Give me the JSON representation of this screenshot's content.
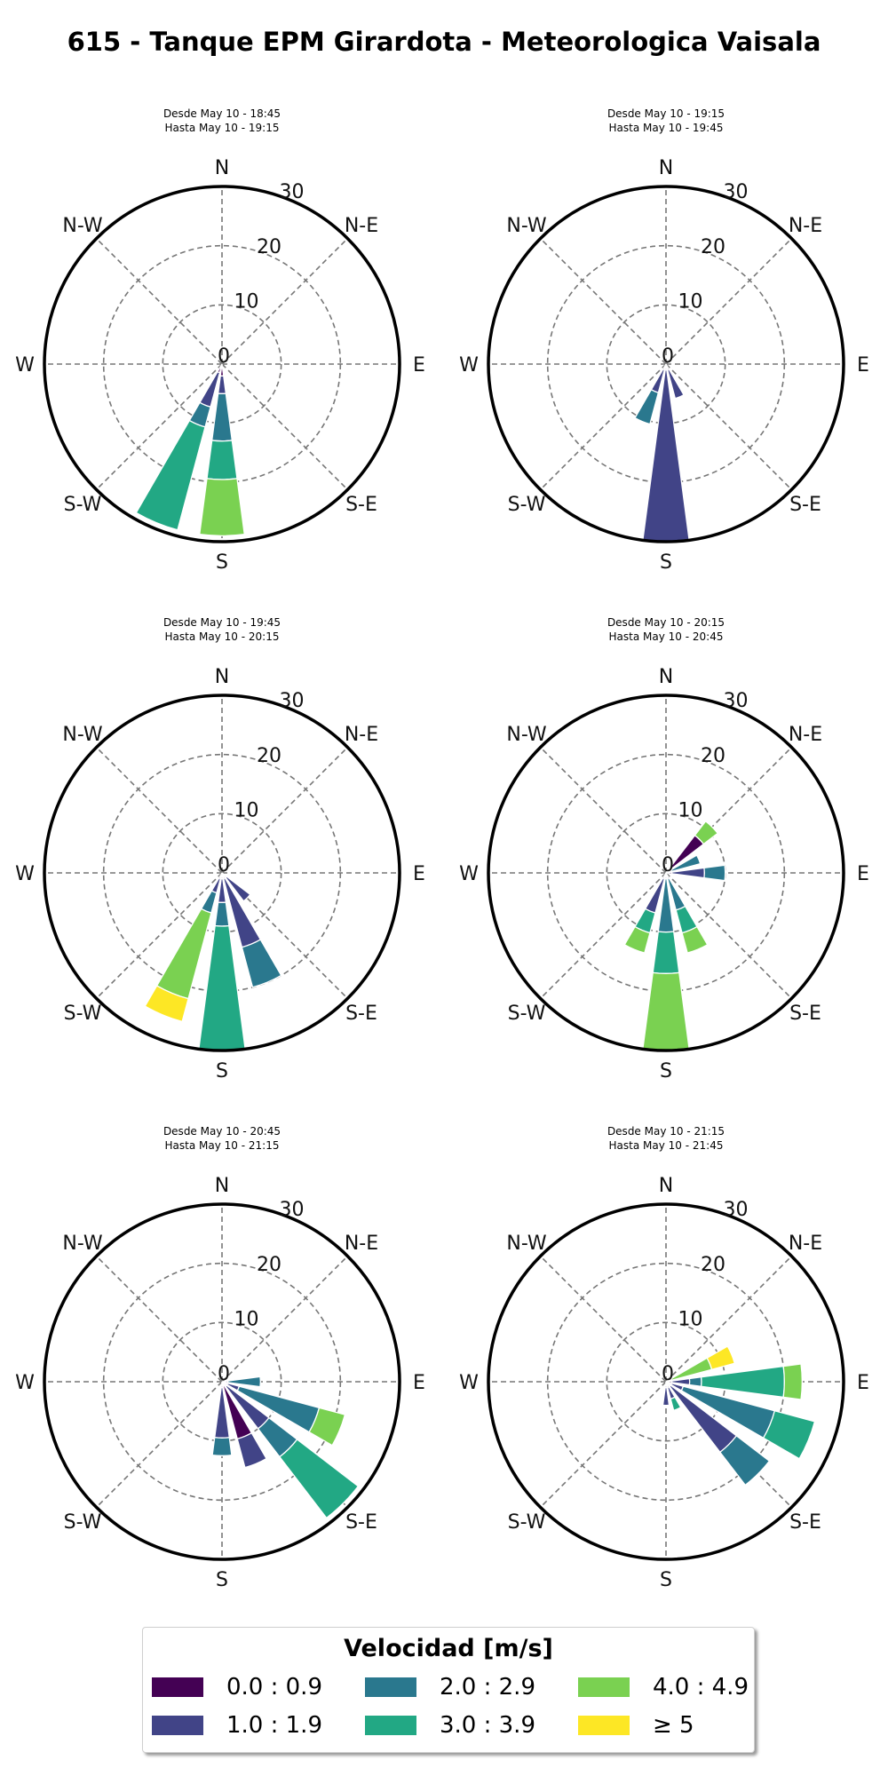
{
  "title": "615 - Tanque EPM Girardota - Meteorologica Vaisala",
  "legend": {
    "title": "Velocidad [m/s]",
    "bins": [
      {
        "label": "0.0 : 0.9",
        "color": "#440154"
      },
      {
        "label": "1.0 : 1.9",
        "color": "#414487"
      },
      {
        "label": "2.0 : 2.9",
        "color": "#2a788e"
      },
      {
        "label": "3.0 : 3.9",
        "color": "#22a884"
      },
      {
        "label": "4.0 : 4.9",
        "color": "#7ad151"
      },
      {
        "label": "≥ 5",
        "color": "#fde725"
      }
    ]
  },
  "chart_data": [
    {
      "type": "windrose",
      "subtitle": [
        "Desde May 10 - 18:45",
        "Hasta May 10 - 19:15"
      ],
      "direction_labels": [
        "N",
        "N-E",
        "E",
        "S-E",
        "S",
        "S-W",
        "W",
        "N-W"
      ],
      "radial_ticks": [
        0,
        10,
        20,
        30
      ],
      "rlim": [
        0,
        30
      ],
      "grid": true,
      "bars": [
        {
          "direction": 180,
          "stack": [
            {
              "bin": 0,
              "to": 2.0
            },
            {
              "bin": 1,
              "to": 5.0
            },
            {
              "bin": 2,
              "to": 13.0
            },
            {
              "bin": 3,
              "to": 19.5
            },
            {
              "bin": 4,
              "to": 29.0
            }
          ]
        },
        {
          "direction": 202.5,
          "stack": [
            {
              "bin": 0,
              "to": 1.5
            },
            {
              "bin": 1,
              "to": 7.5
            },
            {
              "bin": 2,
              "to": 11.0
            },
            {
              "bin": 3,
              "to": 29.0
            }
          ]
        }
      ]
    },
    {
      "type": "windrose",
      "subtitle": [
        "Desde May 10 - 19:15",
        "Hasta May 10 - 19:45"
      ],
      "direction_labels": [
        "N",
        "N-E",
        "E",
        "S-E",
        "S",
        "S-W",
        "W",
        "N-W"
      ],
      "radial_ticks": [
        0,
        10,
        20,
        30
      ],
      "rlim": [
        0,
        30
      ],
      "grid": true,
      "bars": [
        {
          "direction": 157.5,
          "stack": [
            {
              "bin": 0,
              "to": 1.0
            },
            {
              "bin": 1,
              "to": 6.0
            }
          ]
        },
        {
          "direction": 180,
          "stack": [
            {
              "bin": 0,
              "to": 1.0
            },
            {
              "bin": 1,
              "to": 30.0
            }
          ]
        },
        {
          "direction": 202.5,
          "stack": [
            {
              "bin": 0,
              "to": 1.0
            },
            {
              "bin": 1,
              "to": 5.0
            },
            {
              "bin": 2,
              "to": 10.5
            }
          ]
        }
      ]
    },
    {
      "type": "windrose",
      "subtitle": [
        "Desde May 10 - 19:45",
        "Hasta May 10 - 20:15"
      ],
      "direction_labels": [
        "N",
        "N-E",
        "E",
        "S-E",
        "S",
        "S-W",
        "W",
        "N-W"
      ],
      "radial_ticks": [
        0,
        10,
        20,
        30
      ],
      "rlim": [
        0,
        30
      ],
      "grid": true,
      "bars": [
        {
          "direction": 135,
          "stack": [
            {
              "bin": 0,
              "to": 1.0
            },
            {
              "bin": 1,
              "to": 6.0
            }
          ]
        },
        {
          "direction": 157.5,
          "stack": [
            {
              "bin": 0,
              "to": 1.0
            },
            {
              "bin": 1,
              "to": 13.0
            },
            {
              "bin": 2,
              "to": 20.0
            }
          ]
        },
        {
          "direction": 180,
          "stack": [
            {
              "bin": 0,
              "to": 1.0
            },
            {
              "bin": 1,
              "to": 5.0
            },
            {
              "bin": 2,
              "to": 9.0
            },
            {
              "bin": 3,
              "to": 30.0
            }
          ]
        },
        {
          "direction": 202.5,
          "stack": [
            {
              "bin": 0,
              "to": 1.0
            },
            {
              "bin": 1,
              "to": 3.5
            },
            {
              "bin": 2,
              "to": 7.0
            },
            {
              "bin": 4,
              "to": 22.0
            },
            {
              "bin": 5,
              "to": 26.0
            }
          ]
        }
      ]
    },
    {
      "type": "windrose",
      "subtitle": [
        "Desde May 10 - 20:15",
        "Hasta May 10 - 20:45"
      ],
      "direction_labels": [
        "N",
        "N-E",
        "E",
        "S-E",
        "S",
        "S-W",
        "W",
        "N-W"
      ],
      "radial_ticks": [
        0,
        10,
        20,
        30
      ],
      "rlim": [
        0,
        30
      ],
      "grid": true,
      "bars": [
        {
          "direction": 45,
          "stack": [
            {
              "bin": 0,
              "to": 8.0
            },
            {
              "bin": 4,
              "to": 11.0
            }
          ]
        },
        {
          "direction": 67.5,
          "stack": [
            {
              "bin": 0,
              "to": 1.0
            },
            {
              "bin": 2,
              "to": 6.0
            }
          ]
        },
        {
          "direction": 90,
          "stack": [
            {
              "bin": 0,
              "to": 1.0
            },
            {
              "bin": 1,
              "to": 6.5
            },
            {
              "bin": 2,
              "to": 10.0
            }
          ]
        },
        {
          "direction": 157.5,
          "stack": [
            {
              "bin": 0,
              "to": 1.0
            },
            {
              "bin": 2,
              "to": 6.5
            },
            {
              "bin": 3,
              "to": 10.5
            },
            {
              "bin": 4,
              "to": 14.0
            }
          ]
        },
        {
          "direction": 180,
          "stack": [
            {
              "bin": 0,
              "to": 1.0
            },
            {
              "bin": 2,
              "to": 10.0
            },
            {
              "bin": 3,
              "to": 17.0
            },
            {
              "bin": 4,
              "to": 30.0
            }
          ]
        },
        {
          "direction": 202.5,
          "stack": [
            {
              "bin": 0,
              "to": 1.0
            },
            {
              "bin": 1,
              "to": 7.0
            },
            {
              "bin": 3,
              "to": 10.5
            },
            {
              "bin": 4,
              "to": 14.0
            }
          ]
        }
      ]
    },
    {
      "type": "windrose",
      "subtitle": [
        "Desde May 10 - 20:45",
        "Hasta May 10 - 21:15"
      ],
      "direction_labels": [
        "N",
        "N-E",
        "E",
        "S-E",
        "S",
        "S-W",
        "W",
        "N-W"
      ],
      "radial_ticks": [
        0,
        10,
        20,
        30
      ],
      "rlim": [
        0,
        30
      ],
      "grid": true,
      "bars": [
        {
          "direction": 90,
          "stack": [
            {
              "bin": 0,
              "to": 1.0
            },
            {
              "bin": 2,
              "to": 6.5
            }
          ]
        },
        {
          "direction": 112.5,
          "stack": [
            {
              "bin": 0,
              "to": 1.0
            },
            {
              "bin": 1,
              "to": 3.0
            },
            {
              "bin": 2,
              "to": 17.0
            },
            {
              "bin": 4,
              "to": 21.5
            }
          ]
        },
        {
          "direction": 135,
          "stack": [
            {
              "bin": 0,
              "to": 1.0
            },
            {
              "bin": 1,
              "to": 10.0
            },
            {
              "bin": 2,
              "to": 16.0
            },
            {
              "bin": 3,
              "to": 29.0
            }
          ]
        },
        {
          "direction": 157.5,
          "stack": [
            {
              "bin": 0,
              "to": 10.0
            },
            {
              "bin": 1,
              "to": 15.0
            }
          ]
        },
        {
          "direction": 180,
          "stack": [
            {
              "bin": 0,
              "to": 1.0
            },
            {
              "bin": 1,
              "to": 9.5
            },
            {
              "bin": 2,
              "to": 12.5
            }
          ]
        }
      ]
    },
    {
      "type": "windrose",
      "subtitle": [
        "Desde May 10 - 21:15",
        "Hasta May 10 - 21:45"
      ],
      "direction_labels": [
        "N",
        "N-E",
        "E",
        "S-E",
        "S",
        "S-W",
        "W",
        "N-W"
      ],
      "radial_ticks": [
        0,
        10,
        20,
        30
      ],
      "rlim": [
        0,
        30
      ],
      "grid": true,
      "bars": [
        {
          "direction": 67.5,
          "stack": [
            {
              "bin": 0,
              "to": 1.0
            },
            {
              "bin": 4,
              "to": 8.0
            },
            {
              "bin": 5,
              "to": 12.0
            }
          ]
        },
        {
          "direction": 90,
          "stack": [
            {
              "bin": 0,
              "to": 1.0
            },
            {
              "bin": 1,
              "to": 4.0
            },
            {
              "bin": 2,
              "to": 6.0
            },
            {
              "bin": 3,
              "to": 20.0
            },
            {
              "bin": 4,
              "to": 23.0
            }
          ]
        },
        {
          "direction": 112.5,
          "stack": [
            {
              "bin": 0,
              "to": 1.0
            },
            {
              "bin": 1,
              "to": 3.0
            },
            {
              "bin": 2,
              "to": 19.0
            },
            {
              "bin": 3,
              "to": 26.0
            }
          ]
        },
        {
          "direction": 135,
          "stack": [
            {
              "bin": 0,
              "to": 1.0
            },
            {
              "bin": 1,
              "to": 15.0
            },
            {
              "bin": 2,
              "to": 22.0
            }
          ]
        },
        {
          "direction": 157.5,
          "stack": [
            {
              "bin": 0,
              "to": 1.0
            },
            {
              "bin": 1,
              "to": 3.0
            },
            {
              "bin": 3,
              "to": 5.0
            }
          ]
        },
        {
          "direction": 180,
          "stack": [
            {
              "bin": 0,
              "to": 1.0
            },
            {
              "bin": 1,
              "to": 4.0
            }
          ]
        }
      ]
    }
  ]
}
